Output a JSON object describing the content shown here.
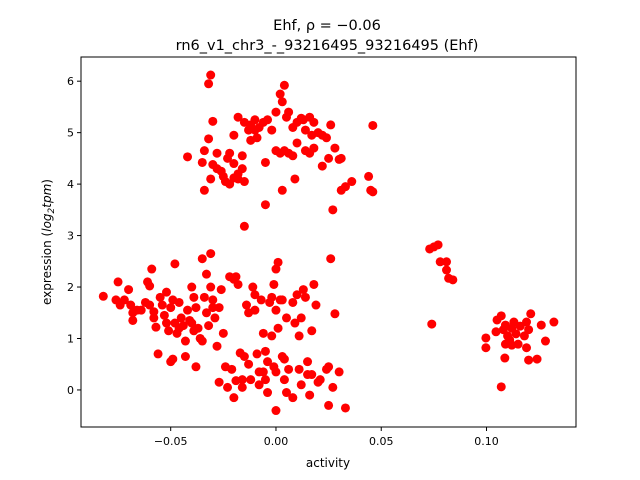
{
  "chart_data": {
    "type": "scatter",
    "title_line1": "Ehf, ρ = −0.06",
    "title_line2": "rn6_v1_chr3_-_93216495_93216495 (Ehf)",
    "xlabel": "activity",
    "ylabel_parts": {
      "pre": "expression (",
      "log": "log",
      "sub": "2",
      "tpm": "tpm",
      "post": ")"
    },
    "xlim": [
      -0.0926,
      0.1425
    ],
    "ylim": [
      -0.72,
      6.47
    ],
    "xticks": [
      -0.05,
      0.0,
      0.05,
      0.1
    ],
    "xtick_labels": [
      "−0.05",
      "0.00",
      "0.05",
      "0.10"
    ],
    "yticks": [
      0,
      1,
      2,
      3,
      4,
      5,
      6
    ],
    "ytick_labels": [
      "0",
      "1",
      "2",
      "3",
      "4",
      "5",
      "6"
    ],
    "grid": false,
    "marker_color": "#ff0000",
    "points": [
      [
        0.073,
        2.74
      ],
      [
        0.075,
        2.78
      ],
      [
        0.077,
        2.82
      ],
      [
        0.078,
        2.49
      ],
      [
        0.081,
        2.49
      ],
      [
        0.081,
        2.33
      ],
      [
        0.082,
        2.17
      ],
      [
        0.084,
        2.14
      ],
      [
        0.074,
        1.28
      ],
      [
        0.0997,
        1.01
      ],
      [
        0.0997,
        0.82
      ],
      [
        0.105,
        1.36
      ],
      [
        0.107,
        1.44
      ],
      [
        0.108,
        1.17
      ],
      [
        0.109,
        1.26
      ],
      [
        0.11,
        1.05
      ],
      [
        0.111,
        0.97
      ],
      [
        0.112,
        1.2
      ],
      [
        0.113,
        1.32
      ],
      [
        0.1087,
        0.62
      ],
      [
        0.107,
        0.06
      ],
      [
        0.114,
        1.09
      ],
      [
        0.116,
        1.24
      ],
      [
        0.118,
        1.05
      ],
      [
        0.119,
        0.82
      ],
      [
        0.12,
        0.58
      ],
      [
        0.121,
        1.48
      ],
      [
        0.119,
        1.32
      ],
      [
        0.124,
        0.6
      ],
      [
        0.126,
        1.26
      ],
      [
        0.128,
        0.95
      ],
      [
        0.132,
        1.32
      ],
      [
        0.12,
        1.17
      ],
      [
        0.112,
        0.87
      ],
      [
        0.115,
        0.89
      ],
      [
        0.109,
        0.89
      ],
      [
        0.1045,
        1.13
      ],
      [
        -0.031,
        6.12
      ],
      [
        -0.032,
        5.95
      ],
      [
        -0.03,
        5.22
      ],
      [
        -0.032,
        4.88
      ],
      [
        -0.034,
        4.65
      ],
      [
        -0.042,
        4.53
      ],
      [
        -0.035,
        4.42
      ],
      [
        -0.034,
        3.88
      ],
      [
        -0.031,
        4.1
      ],
      [
        -0.03,
        4.38
      ],
      [
        -0.028,
        4.3
      ],
      [
        -0.025,
        4.15
      ],
      [
        -0.024,
        4.05
      ],
      [
        -0.022,
        4.0
      ],
      [
        -0.02,
        4.12
      ],
      [
        -0.018,
        4.2
      ],
      [
        -0.016,
        4.3
      ],
      [
        -0.015,
        4.05
      ],
      [
        -0.022,
        4.6
      ],
      [
        -0.023,
        4.5
      ],
      [
        -0.02,
        4.4
      ],
      [
        -0.02,
        4.95
      ],
      [
        -0.018,
        5.3
      ],
      [
        -0.015,
        5.2
      ],
      [
        -0.013,
        5.05
      ],
      [
        -0.012,
        5.15
      ],
      [
        -0.01,
        5.25
      ],
      [
        -0.008,
        5.1
      ],
      [
        -0.006,
        5.2
      ],
      [
        -0.004,
        5.25
      ],
      [
        -0.002,
        5.05
      ],
      [
        0.0,
        5.4
      ],
      [
        0.002,
        5.75
      ],
      [
        0.003,
        5.6
      ],
      [
        0.004,
        5.92
      ],
      [
        0.006,
        5.4
      ],
      [
        0.005,
        5.3
      ],
      [
        0.008,
        5.1
      ],
      [
        0.01,
        5.2
      ],
      [
        0.013,
        5.25
      ],
      [
        0.014,
        5.05
      ],
      [
        0.016,
        5.3
      ],
      [
        0.018,
        5.2
      ],
      [
        0.02,
        5.0
      ],
      [
        0.022,
        4.95
      ],
      [
        0.024,
        4.9
      ],
      [
        0.026,
        5.15
      ],
      [
        0.025,
        4.5
      ],
      [
        0.018,
        4.7
      ],
      [
        0.016,
        4.6
      ],
      [
        0.014,
        4.65
      ],
      [
        0.01,
        4.8
      ],
      [
        0.008,
        4.55
      ],
      [
        0.006,
        4.6
      ],
      [
        0.004,
        4.65
      ],
      [
        0.002,
        4.6
      ],
      [
        0.0,
        4.65
      ],
      [
        0.003,
        3.88
      ],
      [
        0.009,
        4.1
      ],
      [
        -0.005,
        4.42
      ],
      [
        -0.012,
        4.85
      ],
      [
        -0.016,
        4.55
      ],
      [
        -0.018,
        4.1
      ],
      [
        -0.026,
        4.25
      ],
      [
        -0.028,
        4.6
      ],
      [
        -0.005,
        3.6
      ],
      [
        -0.015,
        3.18
      ],
      [
        0.027,
        3.5
      ],
      [
        0.031,
        3.88
      ],
      [
        0.033,
        3.95
      ],
      [
        0.036,
        4.05
      ],
      [
        0.03,
        4.48
      ],
      [
        0.031,
        4.5
      ],
      [
        0.028,
        4.7
      ],
      [
        0.022,
        4.35
      ],
      [
        0.044,
        4.15
      ],
      [
        0.045,
        3.88
      ],
      [
        0.046,
        3.85
      ],
      [
        0.046,
        5.14
      ],
      [
        -0.01,
        5.05
      ],
      [
        0.012,
        5.28
      ],
      [
        0.017,
        4.95
      ],
      [
        -0.009,
        4.9
      ],
      [
        -0.082,
        1.82
      ],
      [
        -0.076,
        1.75
      ],
      [
        -0.075,
        2.1
      ],
      [
        -0.074,
        1.65
      ],
      [
        -0.072,
        1.75
      ],
      [
        -0.07,
        1.95
      ],
      [
        -0.069,
        1.65
      ],
      [
        -0.068,
        1.5
      ],
      [
        -0.068,
        1.35
      ],
      [
        -0.066,
        1.55
      ],
      [
        -0.061,
        2.1
      ],
      [
        -0.06,
        2.02
      ],
      [
        -0.059,
        2.35
      ],
      [
        -0.06,
        1.65
      ],
      [
        -0.058,
        1.52
      ],
      [
        -0.058,
        1.4
      ],
      [
        -0.057,
        1.22
      ],
      [
        -0.055,
        1.8
      ],
      [
        -0.054,
        1.65
      ],
      [
        -0.053,
        1.45
      ],
      [
        -0.052,
        1.3
      ],
      [
        -0.052,
        1.9
      ],
      [
        -0.051,
        1.15
      ],
      [
        -0.05,
        1.6
      ],
      [
        -0.049,
        1.75
      ],
      [
        -0.048,
        1.3
      ],
      [
        -0.047,
        1.1
      ],
      [
        -0.046,
        1.2
      ],
      [
        -0.048,
        2.45
      ],
      [
        -0.046,
        1.7
      ],
      [
        -0.045,
        1.4
      ],
      [
        -0.044,
        1.25
      ],
      [
        -0.043,
        0.95
      ],
      [
        -0.043,
        0.65
      ],
      [
        -0.042,
        1.55
      ],
      [
        -0.041,
        1.35
      ],
      [
        -0.04,
        1.3
      ],
      [
        -0.04,
        2.0
      ],
      [
        -0.039,
        1.8
      ],
      [
        -0.038,
        1.6
      ],
      [
        -0.038,
        0.45
      ],
      [
        -0.037,
        1.2
      ],
      [
        -0.036,
        1.0
      ],
      [
        -0.035,
        0.95
      ],
      [
        -0.035,
        2.55
      ],
      [
        -0.034,
        1.8
      ],
      [
        -0.033,
        1.5
      ],
      [
        -0.032,
        1.25
      ],
      [
        -0.033,
        2.25
      ],
      [
        -0.031,
        2.0
      ],
      [
        -0.03,
        1.75
      ],
      [
        -0.031,
        2.65
      ],
      [
        -0.03,
        1.6
      ],
      [
        -0.029,
        1.4
      ],
      [
        -0.028,
        0.85
      ],
      [
        -0.027,
        1.6
      ],
      [
        -0.026,
        1.95
      ],
      [
        -0.025,
        1.1
      ],
      [
        -0.024,
        0.45
      ],
      [
        -0.023,
        0.05
      ],
      [
        -0.021,
        0.4
      ],
      [
        -0.02,
        2.15
      ],
      [
        -0.019,
        2.2
      ],
      [
        -0.018,
        2.05
      ],
      [
        -0.02,
        -0.15
      ],
      [
        -0.019,
        0.18
      ],
      [
        -0.017,
        0.72
      ],
      [
        -0.016,
        0.2
      ],
      [
        -0.015,
        0.65
      ],
      [
        -0.014,
        1.65
      ],
      [
        -0.013,
        1.5
      ],
      [
        -0.013,
        0.5
      ],
      [
        -0.012,
        0.2
      ],
      [
        -0.011,
        2.0
      ],
      [
        -0.01,
        1.85
      ],
      [
        -0.01,
        1.55
      ],
      [
        -0.009,
        0.7
      ],
      [
        -0.008,
        0.35
      ],
      [
        -0.008,
        0.1
      ],
      [
        -0.007,
        1.75
      ],
      [
        -0.006,
        1.1
      ],
      [
        -0.005,
        0.75
      ],
      [
        -0.005,
        0.2
      ],
      [
        -0.004,
        0.55
      ],
      [
        -0.004,
        -0.05
      ],
      [
        -0.003,
        1.7
      ],
      [
        -0.002,
        1.8
      ],
      [
        -0.002,
        1.05
      ],
      [
        -0.001,
        0.45
      ],
      [
        0.0,
        0.35
      ],
      [
        0.0,
        -0.4
      ],
      [
        -0.001,
        2.05
      ],
      [
        0.0,
        2.35
      ],
      [
        0.001,
        2.48
      ],
      [
        0.0,
        1.55
      ],
      [
        0.001,
        1.2
      ],
      [
        0.002,
        1.75
      ],
      [
        0.003,
        0.65
      ],
      [
        0.004,
        0.2
      ],
      [
        0.004,
        0.6
      ],
      [
        0.005,
        1.4
      ],
      [
        0.005,
        -0.05
      ],
      [
        0.006,
        0.4
      ],
      [
        0.008,
        -0.15
      ],
      [
        0.009,
        1.3
      ],
      [
        0.01,
        1.85
      ],
      [
        0.011,
        1.05
      ],
      [
        0.011,
        0.4
      ],
      [
        0.012,
        1.4
      ],
      [
        0.012,
        0.1
      ],
      [
        0.013,
        1.95
      ],
      [
        0.014,
        1.8
      ],
      [
        0.015,
        0.55
      ],
      [
        0.015,
        0.3
      ],
      [
        0.016,
        -0.1
      ],
      [
        0.017,
        1.15
      ],
      [
        0.017,
        0.3
      ],
      [
        0.018,
        2.05
      ],
      [
        0.019,
        1.65
      ],
      [
        0.02,
        0.15
      ],
      [
        0.021,
        0.2
      ],
      [
        0.024,
        0.4
      ],
      [
        0.025,
        -0.3
      ],
      [
        0.026,
        2.55
      ],
      [
        0.027,
        0.05
      ],
      [
        0.028,
        1.48
      ],
      [
        0.03,
        0.35
      ],
      [
        0.033,
        -0.35
      ],
      [
        0.025,
        0.45
      ],
      [
        -0.064,
        1.55
      ],
      [
        -0.062,
        1.7
      ],
      [
        -0.056,
        0.7
      ],
      [
        -0.05,
        0.55
      ],
      [
        -0.049,
        0.6
      ],
      [
        -0.039,
        1.15
      ],
      [
        -0.027,
        0.15
      ],
      [
        -0.016,
        0.05
      ],
      [
        -0.022,
        2.2
      ],
      [
        -0.006,
        0.35
      ],
      [
        0.003,
        1.75
      ],
      [
        0.008,
        1.7
      ]
    ]
  }
}
